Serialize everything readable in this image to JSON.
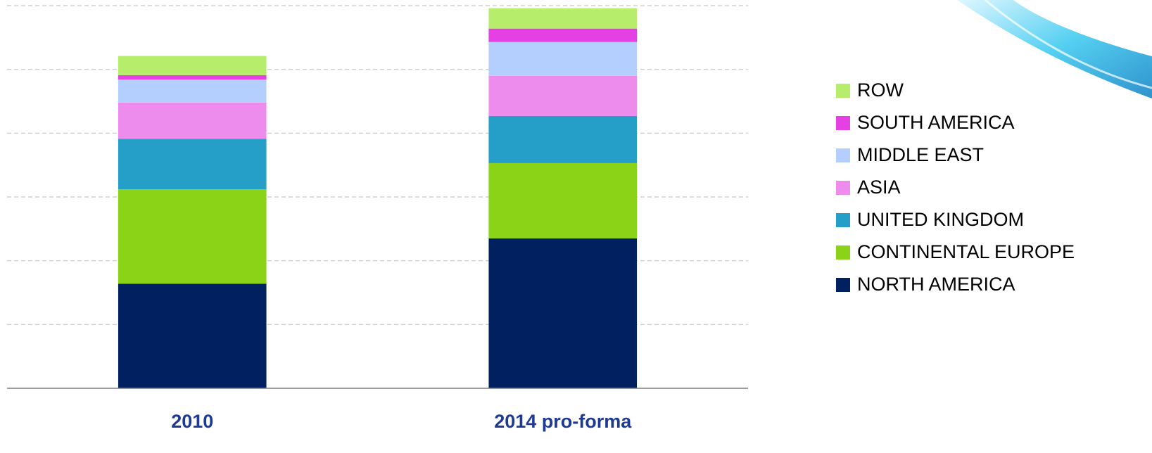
{
  "chart_data": {
    "type": "bar",
    "stacked": true,
    "categories": [
      "2010",
      "2014 pro-forma"
    ],
    "series": [
      {
        "name": "NORTH AMERICA",
        "color": "#002060",
        "values": [
          1.64,
          2.35
        ]
      },
      {
        "name": "CONTINENTAL EUROPE",
        "color": "#8ad317",
        "values": [
          1.48,
          1.18
        ]
      },
      {
        "name": "UNITED KINGDOM",
        "color": "#269fc8",
        "values": [
          0.79,
          0.74
        ]
      },
      {
        "name": "ASIA",
        "color": "#ee8cee",
        "values": [
          0.57,
          0.63
        ]
      },
      {
        "name": "MIDDLE EAST",
        "color": "#b4cffd",
        "values": [
          0.36,
          0.53
        ]
      },
      {
        "name": "SOUTH AMERICA",
        "color": "#e440e4",
        "values": [
          0.07,
          0.21
        ]
      },
      {
        "name": "ROW",
        "color": "#b6ee6c",
        "values": [
          0.3,
          0.32
        ]
      }
    ],
    "ylim": [
      0,
      6
    ],
    "yticks": [
      0,
      1,
      2,
      3,
      4,
      5,
      6
    ],
    "grid": true,
    "legend": "right"
  }
}
